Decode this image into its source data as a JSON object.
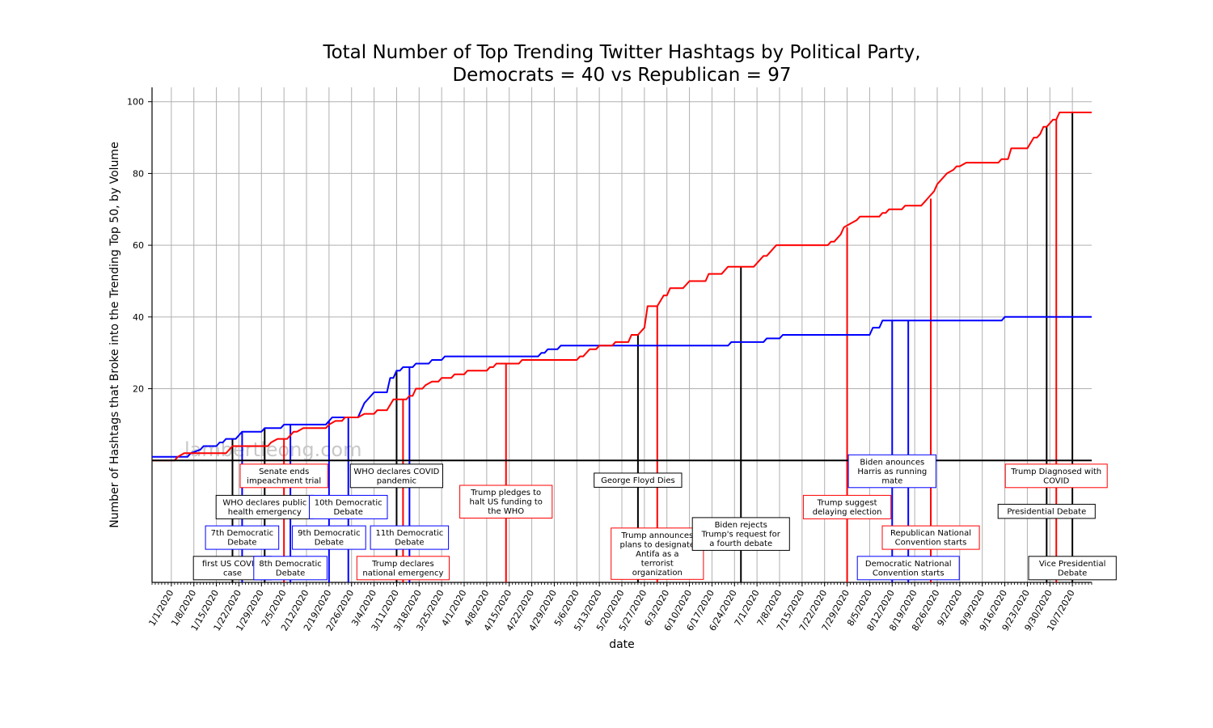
{
  "chart_data": {
    "type": "line",
    "title_lines": [
      "Total Number of Top Trending Twitter Hashtags by Political Party,",
      "Democrats = 40 vs Republican = 97"
    ],
    "xlabel": "date",
    "ylabel": "Number of Hashtags that Broke into the Trending Top 50, by Volume",
    "watermark": "lambertleong.com",
    "x_range": [
      "2019-12-26",
      "2020-10-13"
    ],
    "ylim": [
      -34,
      104
    ],
    "grid": true,
    "x_ticks": [
      "1/1/2020",
      "1/8/2020",
      "1/15/2020",
      "1/22/2020",
      "1/29/2020",
      "2/5/2020",
      "2/12/2020",
      "2/19/2020",
      "2/26/2020",
      "3/4/2020",
      "3/11/2020",
      "3/18/2020",
      "3/25/2020",
      "4/1/2020",
      "4/8/2020",
      "4/15/2020",
      "4/22/2020",
      "4/29/2020",
      "5/6/2020",
      "5/13/2020",
      "5/20/2020",
      "5/27/2020",
      "6/3/2020",
      "6/10/2020",
      "6/17/2020",
      "6/24/2020",
      "7/1/2020",
      "7/8/2020",
      "7/15/2020",
      "7/22/2020",
      "7/29/2020",
      "8/5/2020",
      "8/12/2020",
      "8/19/2020",
      "8/26/2020",
      "9/2/2020",
      "9/9/2020",
      "9/16/2020",
      "9/23/2020",
      "9/30/2020",
      "10/7/2020"
    ],
    "y_ticks": [
      20,
      40,
      60,
      80,
      100
    ],
    "zero_line": 0,
    "series": [
      {
        "name": "Democrats",
        "color": "#0000ff",
        "points": [
          [
            "2019-12-26",
            1
          ],
          [
            "2020-01-06",
            1
          ],
          [
            "2020-01-07",
            2
          ],
          [
            "2020-01-10",
            3
          ],
          [
            "2020-01-11",
            4
          ],
          [
            "2020-01-15",
            4
          ],
          [
            "2020-01-16",
            5
          ],
          [
            "2020-01-17",
            5
          ],
          [
            "2020-01-18",
            6
          ],
          [
            "2020-01-21",
            6
          ],
          [
            "2020-01-22",
            7
          ],
          [
            "2020-01-23",
            8
          ],
          [
            "2020-01-29",
            8
          ],
          [
            "2020-01-30",
            9
          ],
          [
            "2020-02-04",
            9
          ],
          [
            "2020-02-05",
            10
          ],
          [
            "2020-02-18",
            10
          ],
          [
            "2020-02-19",
            11
          ],
          [
            "2020-02-20",
            12
          ],
          [
            "2020-02-28",
            12
          ],
          [
            "2020-03-01",
            16
          ],
          [
            "2020-03-04",
            19
          ],
          [
            "2020-03-08",
            19
          ],
          [
            "2020-03-09",
            23
          ],
          [
            "2020-03-10",
            23
          ],
          [
            "2020-03-11",
            25
          ],
          [
            "2020-03-12",
            25
          ],
          [
            "2020-03-13",
            26
          ],
          [
            "2020-03-16",
            26
          ],
          [
            "2020-03-17",
            27
          ],
          [
            "2020-03-21",
            27
          ],
          [
            "2020-03-22",
            28
          ],
          [
            "2020-03-25",
            28
          ],
          [
            "2020-03-26",
            29
          ],
          [
            "2020-04-24",
            29
          ],
          [
            "2020-04-25",
            30
          ],
          [
            "2020-04-26",
            30
          ],
          [
            "2020-04-27",
            31
          ],
          [
            "2020-04-30",
            31
          ],
          [
            "2020-05-01",
            32
          ],
          [
            "2020-06-22",
            32
          ],
          [
            "2020-06-23",
            33
          ],
          [
            "2020-07-03",
            33
          ],
          [
            "2020-07-04",
            34
          ],
          [
            "2020-07-08",
            34
          ],
          [
            "2020-07-09",
            35
          ],
          [
            "2020-08-05",
            35
          ],
          [
            "2020-08-06",
            37
          ],
          [
            "2020-08-08",
            37
          ],
          [
            "2020-08-09",
            39
          ],
          [
            "2020-09-15",
            39
          ],
          [
            "2020-09-16",
            40
          ],
          [
            "2020-10-13",
            40
          ]
        ]
      },
      {
        "name": "Republicans",
        "color": "#ff0000",
        "points": [
          [
            "2019-12-26",
            0
          ],
          [
            "2020-01-02",
            0
          ],
          [
            "2020-01-03",
            1
          ],
          [
            "2020-01-05",
            2
          ],
          [
            "2020-01-18",
            2
          ],
          [
            "2020-01-20",
            4
          ],
          [
            "2020-01-31",
            4
          ],
          [
            "2020-02-01",
            5
          ],
          [
            "2020-02-03",
            6
          ],
          [
            "2020-02-06",
            6
          ],
          [
            "2020-02-08",
            8
          ],
          [
            "2020-02-09",
            8
          ],
          [
            "2020-02-11",
            9
          ],
          [
            "2020-02-18",
            9
          ],
          [
            "2020-02-19",
            10
          ],
          [
            "2020-02-21",
            11
          ],
          [
            "2020-02-23",
            11
          ],
          [
            "2020-02-24",
            12
          ],
          [
            "2020-02-28",
            12
          ],
          [
            "2020-03-01",
            13
          ],
          [
            "2020-03-04",
            13
          ],
          [
            "2020-03-05",
            14
          ],
          [
            "2020-03-08",
            14
          ],
          [
            "2020-03-10",
            17
          ],
          [
            "2020-03-14",
            17
          ],
          [
            "2020-03-15",
            18
          ],
          [
            "2020-03-16",
            18
          ],
          [
            "2020-03-17",
            20
          ],
          [
            "2020-03-19",
            20
          ],
          [
            "2020-03-20",
            21
          ],
          [
            "2020-03-22",
            22
          ],
          [
            "2020-03-24",
            22
          ],
          [
            "2020-03-25",
            23
          ],
          [
            "2020-03-28",
            23
          ],
          [
            "2020-03-29",
            24
          ],
          [
            "2020-04-01",
            24
          ],
          [
            "2020-04-02",
            25
          ],
          [
            "2020-04-08",
            25
          ],
          [
            "2020-04-09",
            26
          ],
          [
            "2020-04-10",
            26
          ],
          [
            "2020-04-11",
            27
          ],
          [
            "2020-04-17",
            27
          ],
          [
            "2020-04-18",
            27
          ],
          [
            "2020-04-19",
            28
          ],
          [
            "2020-05-06",
            28
          ],
          [
            "2020-05-07",
            29
          ],
          [
            "2020-05-08",
            29
          ],
          [
            "2020-05-10",
            31
          ],
          [
            "2020-05-12",
            31
          ],
          [
            "2020-05-13",
            32
          ],
          [
            "2020-05-17",
            32
          ],
          [
            "2020-05-18",
            33
          ],
          [
            "2020-05-22",
            33
          ],
          [
            "2020-05-23",
            35
          ],
          [
            "2020-05-25",
            35
          ],
          [
            "2020-05-27",
            37
          ],
          [
            "2020-05-28",
            43
          ],
          [
            "2020-05-31",
            43
          ],
          [
            "2020-06-02",
            46
          ],
          [
            "2020-06-03",
            46
          ],
          [
            "2020-06-04",
            48
          ],
          [
            "2020-06-08",
            48
          ],
          [
            "2020-06-10",
            50
          ],
          [
            "2020-06-15",
            50
          ],
          [
            "2020-06-16",
            52
          ],
          [
            "2020-06-20",
            52
          ],
          [
            "2020-06-22",
            54
          ],
          [
            "2020-06-30",
            54
          ],
          [
            "2020-07-01",
            55
          ],
          [
            "2020-07-03",
            57
          ],
          [
            "2020-07-04",
            57
          ],
          [
            "2020-07-07",
            60
          ],
          [
            "2020-07-23",
            60
          ],
          [
            "2020-07-24",
            61
          ],
          [
            "2020-07-25",
            61
          ],
          [
            "2020-07-27",
            63
          ],
          [
            "2020-07-28",
            65
          ],
          [
            "2020-07-30",
            66
          ],
          [
            "2020-08-01",
            67
          ],
          [
            "2020-08-02",
            68
          ],
          [
            "2020-08-08",
            68
          ],
          [
            "2020-08-09",
            69
          ],
          [
            "2020-08-10",
            69
          ],
          [
            "2020-08-11",
            70
          ],
          [
            "2020-08-15",
            70
          ],
          [
            "2020-08-16",
            71
          ],
          [
            "2020-08-21",
            71
          ],
          [
            "2020-08-22",
            72
          ],
          [
            "2020-08-23",
            73
          ],
          [
            "2020-08-25",
            75
          ],
          [
            "2020-08-26",
            77
          ],
          [
            "2020-08-27",
            78
          ],
          [
            "2020-08-29",
            80
          ],
          [
            "2020-08-31",
            81
          ],
          [
            "2020-09-01",
            82
          ],
          [
            "2020-09-02",
            82
          ],
          [
            "2020-09-04",
            83
          ],
          [
            "2020-09-14",
            83
          ],
          [
            "2020-09-15",
            84
          ],
          [
            "2020-09-17",
            84
          ],
          [
            "2020-09-18",
            87
          ],
          [
            "2020-09-23",
            87
          ],
          [
            "2020-09-25",
            90
          ],
          [
            "2020-09-26",
            90
          ],
          [
            "2020-09-27",
            91
          ],
          [
            "2020-09-28",
            93
          ],
          [
            "2020-09-29",
            93
          ],
          [
            "2020-10-01",
            95
          ],
          [
            "2020-10-02",
            95
          ],
          [
            "2020-10-03",
            97
          ],
          [
            "2020-10-13",
            97
          ]
        ]
      }
    ],
    "events": [
      {
        "date": "2020-01-20",
        "color": "#000000",
        "label": [
          "first US COVID-",
          "case"
        ],
        "y": -30
      },
      {
        "date": "2020-01-23",
        "color": "#0000ff",
        "label": [
          "7th Democratic",
          "Debate"
        ],
        "y": -21.5
      },
      {
        "date": "2020-01-30",
        "color": "#000000",
        "label": [
          "WHO declares public",
          "health emergency"
        ],
        "y": -13
      },
      {
        "date": "2020-02-05",
        "color": "#ff0000",
        "label": [
          "Senate ends",
          "impeachment trial"
        ],
        "y": -4.3
      },
      {
        "date": "2020-02-07",
        "color": "#0000ff",
        "label": [
          "8th Democratic",
          "Debate"
        ],
        "y": -30
      },
      {
        "date": "2020-02-19",
        "color": "#0000ff",
        "label": [
          "9th Democratic",
          "Debate"
        ],
        "y": -21.5
      },
      {
        "date": "2020-02-25",
        "color": "#0000ff",
        "label": [
          "10th Democratic",
          "Debate"
        ],
        "y": -13
      },
      {
        "date": "2020-03-11",
        "color": "#000000",
        "label": [
          "WHO declares COVID",
          "pandemic"
        ],
        "y": -4.3
      },
      {
        "date": "2020-03-13",
        "color": "#ff0000",
        "label": [
          "Trump declares",
          "national emergency"
        ],
        "y": -30
      },
      {
        "date": "2020-03-15",
        "color": "#0000ff",
        "label": [
          "11th Democratic",
          "Debate"
        ],
        "y": -21.5
      },
      {
        "date": "2020-04-14",
        "color": "#ff0000",
        "label": [
          "Trump pledges to",
          "halt US funding to",
          "the WHO"
        ],
        "y": -11.5
      },
      {
        "date": "2020-05-25",
        "color": "#000000",
        "label": [
          "George Floyd Dies"
        ],
        "y": -5.5
      },
      {
        "date": "2020-05-31",
        "color": "#ff0000",
        "label": [
          "Trump announces",
          "plans to designate",
          "Antifa as a",
          "terrorist",
          "organization"
        ],
        "y": -26
      },
      {
        "date": "2020-06-26",
        "color": "#000000",
        "label": [
          "Biden rejects",
          "Trump's request for",
          "a fourth debate"
        ],
        "y": -20.5
      },
      {
        "date": "2020-07-29",
        "color": "#ff0000",
        "label": [
          "Trump suggest",
          "delaying election"
        ],
        "y": -13
      },
      {
        "date": "2020-08-12",
        "color": "#0000ff",
        "label": [
          "Biden anounces",
          "Harris as running",
          "mate"
        ],
        "y": -3
      },
      {
        "date": "2020-08-17",
        "color": "#0000ff",
        "label": [
          "Democratic Natrional",
          "Convention starts"
        ],
        "y": -30
      },
      {
        "date": "2020-08-24",
        "color": "#ff0000",
        "label": [
          "Republican National",
          "Convention starts"
        ],
        "y": -21.5
      },
      {
        "date": "2020-09-29",
        "color": "#000000",
        "label": [
          "Presidential Debate"
        ],
        "y": -14.2
      },
      {
        "date": "2020-10-02",
        "color": "#ff0000",
        "label": [
          "Trump Diagnosed with",
          "COVID"
        ],
        "y": -4.3
      },
      {
        "date": "2020-10-07",
        "color": "#000000",
        "label": [
          "Vice Presidential",
          "Debate"
        ],
        "y": -30
      }
    ]
  }
}
